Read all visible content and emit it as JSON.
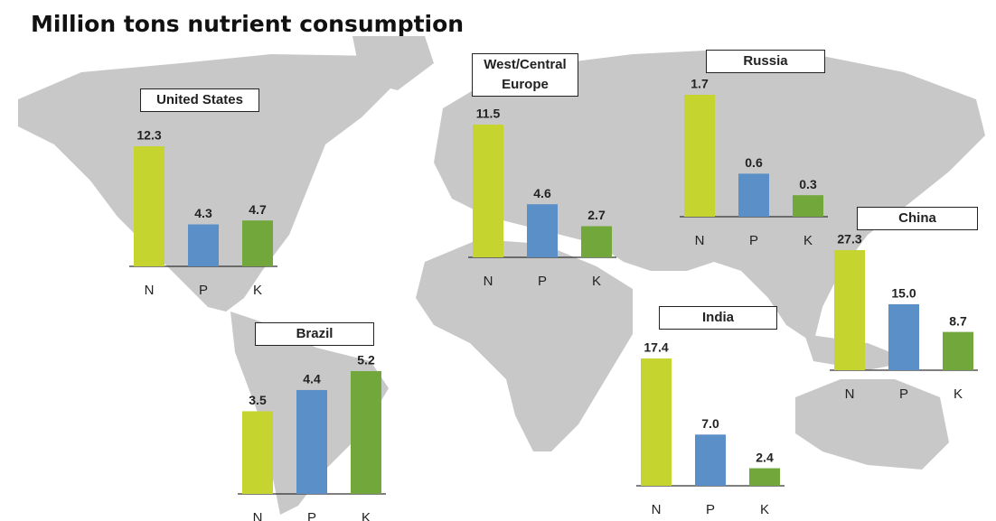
{
  "title": "Million tons nutrient consumption",
  "chart_data": [
    {
      "type": "bar",
      "title": "United States",
      "categories": [
        "N",
        "P",
        "K"
      ],
      "values": [
        12.3,
        4.3,
        4.7
      ],
      "colors": [
        "#c6d42f",
        "#5b8fc8",
        "#72a83b"
      ]
    },
    {
      "type": "bar",
      "title": "West/Central Europe",
      "categories": [
        "N",
        "P",
        "K"
      ],
      "values": [
        11.5,
        4.6,
        2.7
      ],
      "colors": [
        "#c6d42f",
        "#5b8fc8",
        "#72a83b"
      ]
    },
    {
      "type": "bar",
      "title": "Russia",
      "categories": [
        "N",
        "P",
        "K"
      ],
      "values": [
        1.7,
        0.6,
        0.3
      ],
      "colors": [
        "#c6d42f",
        "#5b8fc8",
        "#72a83b"
      ]
    },
    {
      "type": "bar",
      "title": "China",
      "categories": [
        "N",
        "P",
        "K"
      ],
      "values": [
        27.3,
        15.0,
        8.7
      ],
      "value_labels": [
        "27.3",
        "15.0",
        "8.7"
      ],
      "colors": [
        "#c6d42f",
        "#5b8fc8",
        "#72a83b"
      ]
    },
    {
      "type": "bar",
      "title": "India",
      "categories": [
        "N",
        "P",
        "K"
      ],
      "values": [
        17.4,
        7.0,
        2.4
      ],
      "value_labels": [
        "17.4",
        "7.0",
        "2.4"
      ],
      "colors": [
        "#c6d42f",
        "#5b8fc8",
        "#72a83b"
      ]
    },
    {
      "type": "bar",
      "title": "Brazil",
      "categories": [
        "N",
        "P",
        "K"
      ],
      "values": [
        3.5,
        4.4,
        5.2
      ],
      "colors": [
        "#c6d42f",
        "#5b8fc8",
        "#72a83b"
      ]
    }
  ]
}
